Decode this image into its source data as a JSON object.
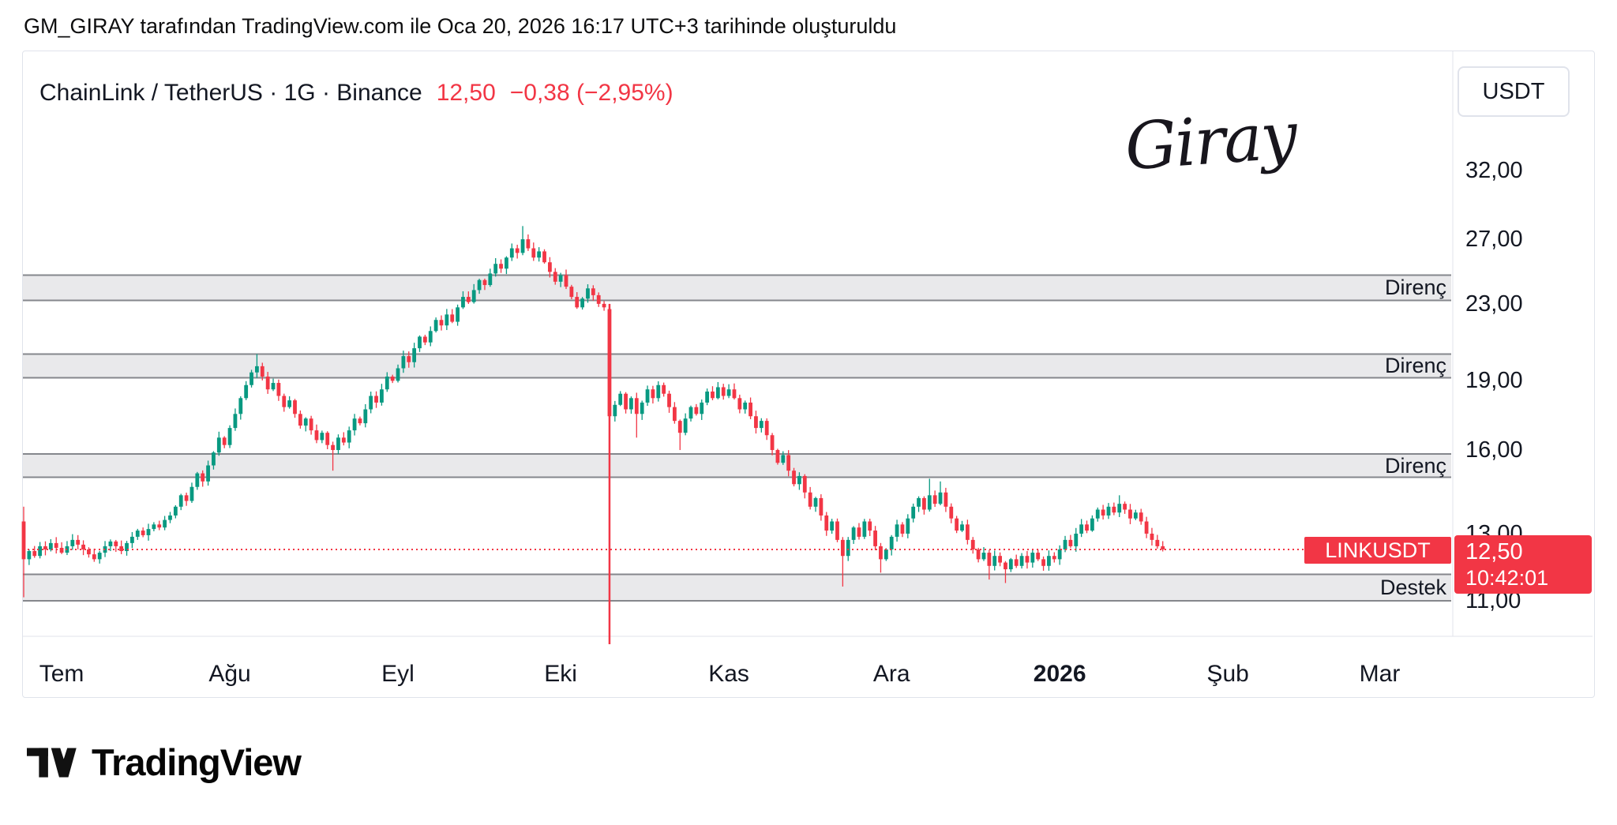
{
  "attribution": "GM_GIRAY tarafından TradingView.com ile Oca 20, 2026 16:17 UTC+3 tarihinde oluşturuldu",
  "header": {
    "symbol_title": "ChainLink / TetherUS · 1G · Binance",
    "price": "12,50",
    "change": "−0,38 (−2,95%)",
    "quote_currency": "USDT"
  },
  "watermark": "Giray",
  "price_label": {
    "symbol": "LINKUSDT",
    "price": "12,50",
    "time": "10:42:01"
  },
  "footer": {
    "brand": "TradingView"
  },
  "chart_data": {
    "type": "candlestick",
    "symbol": "LINKUSDT",
    "timeframe": "1G",
    "exchange": "Binance",
    "scale": "log",
    "y_range": [
      10.5,
      34
    ],
    "y_ticks": [
      32,
      27,
      23,
      19,
      16,
      13,
      11
    ],
    "y_tick_labels": [
      "32,00",
      "27,00",
      "23,00",
      "19,00",
      "16,00",
      "13,00",
      "11,00"
    ],
    "x_labels": [
      {
        "label": "Tem",
        "day": 7
      },
      {
        "label": "Ağu",
        "day": 38
      },
      {
        "label": "Eyl",
        "day": 69
      },
      {
        "label": "Eki",
        "day": 99
      },
      {
        "label": "Kas",
        "day": 130
      },
      {
        "label": "Ara",
        "day": 160
      },
      {
        "label": "2026",
        "day": 191,
        "bold": true
      },
      {
        "label": "Şub",
        "day": 222
      },
      {
        "label": "Mar",
        "day": 250
      }
    ],
    "bands": [
      {
        "label": "Direnç",
        "type": "resistance",
        "price_from": 23.2,
        "price_to": 24.7
      },
      {
        "label": "Direnç",
        "type": "resistance",
        "price_from": 19.15,
        "price_to": 20.3
      },
      {
        "label": "Direnç",
        "type": "resistance",
        "price_from": 14.95,
        "price_to": 15.85
      },
      {
        "label": "Destek",
        "type": "support",
        "price_from": 11.0,
        "price_to": 11.75
      }
    ],
    "current_price": 12.5,
    "event_line_index": 108,
    "open_first": 13.4,
    "closes": [
      12.2,
      12.45,
      12.3,
      12.6,
      12.5,
      12.7,
      12.55,
      12.4,
      12.6,
      12.8,
      12.65,
      12.5,
      12.35,
      12.2,
      12.4,
      12.6,
      12.75,
      12.6,
      12.45,
      12.7,
      12.9,
      13.1,
      12.95,
      13.15,
      13.3,
      13.2,
      13.45,
      13.6,
      13.9,
      14.3,
      14.1,
      14.6,
      15.1,
      14.8,
      15.4,
      15.9,
      16.5,
      16.2,
      16.9,
      17.5,
      18.2,
      18.8,
      19.4,
      19.7,
      19.2,
      18.6,
      18.9,
      18.3,
      17.8,
      18.1,
      17.5,
      17.0,
      17.3,
      16.8,
      16.4,
      16.7,
      16.2,
      16.0,
      16.5,
      16.3,
      16.8,
      17.3,
      17.1,
      17.7,
      18.3,
      18.0,
      18.6,
      19.2,
      19.0,
      19.6,
      20.2,
      19.9,
      20.6,
      21.2,
      20.9,
      21.5,
      22.1,
      21.8,
      22.4,
      22.0,
      22.8,
      23.4,
      23.1,
      23.8,
      24.4,
      24.1,
      24.8,
      25.4,
      25.1,
      25.8,
      26.4,
      26.1,
      27.0,
      26.4,
      25.8,
      26.2,
      25.5,
      24.9,
      24.3,
      24.7,
      24.0,
      23.4,
      22.8,
      23.3,
      23.9,
      23.5,
      23.0,
      22.8,
      17.4,
      17.9,
      18.4,
      17.7,
      18.2,
      17.5,
      18.0,
      18.6,
      18.2,
      18.8,
      18.4,
      17.8,
      17.2,
      16.7,
      17.3,
      17.8,
      17.5,
      18.0,
      18.5,
      18.2,
      18.7,
      18.3,
      18.6,
      18.2,
      17.7,
      18.0,
      17.4,
      16.9,
      17.2,
      16.6,
      16.0,
      15.5,
      15.8,
      15.2,
      14.7,
      15.0,
      14.4,
      13.9,
      14.2,
      13.6,
      13.1,
      13.4,
      12.8,
      12.3,
      12.8,
      13.2,
      12.9,
      13.4,
      13.1,
      12.6,
      12.2,
      12.5,
      12.9,
      13.3,
      13.0,
      13.5,
      13.9,
      14.2,
      13.8,
      14.3,
      14.0,
      14.4,
      13.9,
      13.5,
      13.1,
      13.3,
      12.8,
      12.5,
      12.2,
      12.4,
      12.0,
      12.3,
      12.1,
      11.9,
      12.2,
      12.0,
      12.3,
      12.1,
      12.4,
      12.2,
      12.0,
      12.3,
      12.2,
      12.5,
      12.8,
      12.6,
      13.0,
      13.3,
      13.1,
      13.5,
      13.8,
      13.6,
      13.9,
      13.7,
      14.0,
      13.8,
      13.5,
      13.7,
      13.4,
      13.0,
      12.8,
      12.6,
      12.5
    ],
    "special_candles": {
      "0": {
        "o": 13.4,
        "h": 13.9,
        "l": 11.1
      },
      "43": {
        "h": 20.3
      },
      "57": {
        "l": 15.2
      },
      "92": {
        "h": 27.9
      },
      "108": {
        "o": 22.7,
        "h": 23.0,
        "l": 16.4
      },
      "113": {
        "l": 16.5
      },
      "121": {
        "l": 16.0
      },
      "151": {
        "l": 11.4
      },
      "158": {
        "l": 11.8
      },
      "167": {
        "h": 14.9
      },
      "169": {
        "h": 14.8
      },
      "178": {
        "l": 11.6
      },
      "181": {
        "l": 11.5
      },
      "202": {
        "h": 14.3
      }
    },
    "colors": {
      "up": "#089981",
      "down": "#f23645",
      "accent": "#f23645",
      "band_fill": "#e9e9eb",
      "band_border": "#85878c",
      "separator": "#e0e3eb",
      "text": "#131722"
    }
  }
}
